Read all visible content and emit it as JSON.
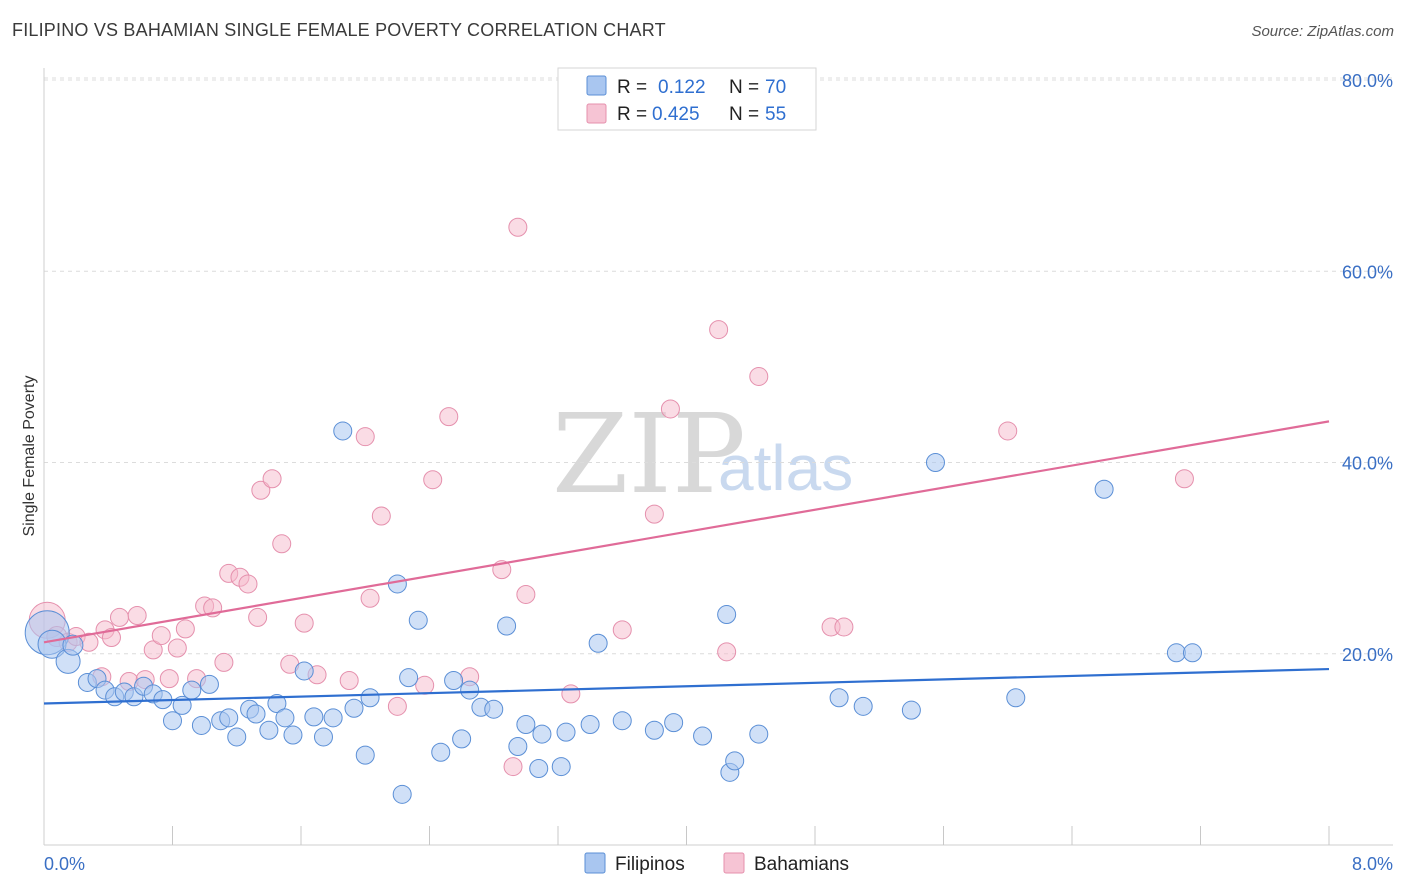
{
  "header": {
    "title": "FILIPINO VS BAHAMIAN SINGLE FEMALE POVERTY CORRELATION CHART",
    "source": "Source: ZipAtlas.com"
  },
  "legend": {
    "rows": [
      {
        "r_label": "R =",
        "r_value": "0.122",
        "n_label": "N =",
        "n_value": "70"
      },
      {
        "r_label": "R =",
        "r_value": "0.425",
        "n_label": "N =",
        "n_value": "55"
      }
    ]
  },
  "bottom_legend": {
    "items": [
      "Filipinos",
      "Bahamians"
    ]
  },
  "watermark": {
    "zip": "ZIP",
    "atlas": "atlas"
  },
  "colors": {
    "blue_fill": "#a9c6f0",
    "blue_stroke": "#5b8fd6",
    "blue_line": "#2f6fd0",
    "pink_fill": "#f6b9cc",
    "pink_stroke": "#e590ad",
    "pink_line": "#e06b98",
    "tick_label": "#3a6fc4"
  },
  "chart_data": {
    "type": "scatter",
    "title": "FILIPINO VS BAHAMIAN SINGLE FEMALE POVERTY CORRELATION CHART",
    "xlabel": "",
    "ylabel": "Single Female Poverty",
    "xlim": [
      0,
      8
    ],
    "ylim": [
      0,
      80
    ],
    "x_tick_labels": [
      "0.0%",
      "8.0%"
    ],
    "y_ticks": [
      20,
      40,
      60,
      80
    ],
    "y_tick_labels": [
      "20.0%",
      "40.0%",
      "60.0%",
      "80.0%"
    ],
    "grid": "horizontal dashed",
    "legend_position": "top-center",
    "series": [
      {
        "name": "Filipinos",
        "color": "#5b8fd6",
        "r": 0.122,
        "n": 70,
        "trend": {
          "x": [
            0,
            8
          ],
          "y": [
            14.8,
            18.4
          ]
        },
        "points": [
          [
            0.02,
            22.2,
            22
          ],
          [
            0.05,
            21.0,
            14
          ],
          [
            0.15,
            19.2,
            12
          ],
          [
            0.18,
            20.9,
            10
          ],
          [
            0.27,
            17.0,
            9
          ],
          [
            0.33,
            17.4,
            9
          ],
          [
            0.38,
            16.2,
            9
          ],
          [
            0.44,
            15.5,
            9
          ],
          [
            0.5,
            16.0,
            9
          ],
          [
            0.56,
            15.5,
            9
          ],
          [
            0.62,
            16.6,
            9
          ],
          [
            0.68,
            15.8,
            9
          ],
          [
            0.74,
            15.2,
            9
          ],
          [
            0.8,
            13.0,
            9
          ],
          [
            0.86,
            14.6,
            9
          ],
          [
            0.92,
            16.2,
            9
          ],
          [
            0.98,
            12.5,
            9
          ],
          [
            1.03,
            16.8,
            9
          ],
          [
            1.1,
            13.0,
            9
          ],
          [
            1.15,
            13.3,
            9
          ],
          [
            1.2,
            11.3,
            9
          ],
          [
            1.28,
            14.2,
            9
          ],
          [
            1.32,
            13.7,
            9
          ],
          [
            1.4,
            12.0,
            9
          ],
          [
            1.45,
            14.8,
            9
          ],
          [
            1.5,
            13.3,
            9
          ],
          [
            1.55,
            11.5,
            9
          ],
          [
            1.62,
            18.2,
            9
          ],
          [
            1.68,
            13.4,
            9
          ],
          [
            1.74,
            11.3,
            9
          ],
          [
            1.8,
            13.3,
            9
          ],
          [
            1.86,
            43.3,
            9
          ],
          [
            1.93,
            14.3,
            9
          ],
          [
            2.0,
            9.4,
            9
          ],
          [
            2.03,
            15.4,
            9
          ],
          [
            2.2,
            27.3,
            9
          ],
          [
            2.23,
            5.3,
            9
          ],
          [
            2.27,
            17.5,
            9
          ],
          [
            2.33,
            23.5,
            9
          ],
          [
            2.47,
            9.7,
            9
          ],
          [
            2.55,
            17.2,
            9
          ],
          [
            2.6,
            11.1,
            9
          ],
          [
            2.65,
            16.2,
            9
          ],
          [
            2.72,
            14.4,
            9
          ],
          [
            2.8,
            14.2,
            9
          ],
          [
            2.88,
            22.9,
            9
          ],
          [
            2.95,
            10.3,
            9
          ],
          [
            3.0,
            12.6,
            9
          ],
          [
            3.08,
            8.0,
            9
          ],
          [
            3.1,
            11.6,
            9
          ],
          [
            3.22,
            8.2,
            9
          ],
          [
            3.25,
            11.8,
            9
          ],
          [
            3.4,
            12.6,
            9
          ],
          [
            3.45,
            21.1,
            9
          ],
          [
            3.6,
            13.0,
            9
          ],
          [
            3.8,
            12.0,
            9
          ],
          [
            3.92,
            12.8,
            9
          ],
          [
            4.1,
            11.4,
            9
          ],
          [
            4.25,
            24.1,
            9
          ],
          [
            4.27,
            7.6,
            9
          ],
          [
            4.3,
            8.8,
            9
          ],
          [
            4.45,
            11.6,
            9
          ],
          [
            4.95,
            15.4,
            9
          ],
          [
            5.1,
            14.5,
            9
          ],
          [
            5.4,
            14.1,
            9
          ],
          [
            5.55,
            40.0,
            9
          ],
          [
            6.05,
            15.4,
            9
          ],
          [
            6.6,
            37.2,
            9
          ],
          [
            7.05,
            20.1,
            9
          ],
          [
            7.15,
            20.1,
            9
          ]
        ]
      },
      {
        "name": "Bahamians",
        "color": "#e590ad",
        "r": 0.425,
        "n": 55,
        "trend": {
          "x": [
            0,
            8
          ],
          "y": [
            21.2,
            44.3
          ]
        },
        "points": [
          [
            0.02,
            23.5,
            18
          ],
          [
            0.08,
            21.8,
            10
          ],
          [
            0.15,
            21.2,
            9
          ],
          [
            0.2,
            21.8,
            9
          ],
          [
            0.28,
            21.2,
            9
          ],
          [
            0.36,
            17.6,
            9
          ],
          [
            0.38,
            22.5,
            9
          ],
          [
            0.42,
            21.7,
            9
          ],
          [
            0.47,
            23.8,
            9
          ],
          [
            0.53,
            17.1,
            9
          ],
          [
            0.58,
            24.0,
            9
          ],
          [
            0.63,
            17.3,
            9
          ],
          [
            0.68,
            20.4,
            9
          ],
          [
            0.73,
            21.9,
            9
          ],
          [
            0.78,
            17.4,
            9
          ],
          [
            0.83,
            20.6,
            9
          ],
          [
            0.88,
            22.6,
            9
          ],
          [
            0.95,
            17.4,
            9
          ],
          [
            1.0,
            25.0,
            9
          ],
          [
            1.05,
            24.8,
            9
          ],
          [
            1.12,
            19.1,
            9
          ],
          [
            1.15,
            28.4,
            9
          ],
          [
            1.22,
            28.0,
            9
          ],
          [
            1.27,
            27.3,
            9
          ],
          [
            1.33,
            23.8,
            9
          ],
          [
            1.35,
            37.1,
            9
          ],
          [
            1.42,
            38.3,
            9
          ],
          [
            1.48,
            31.5,
            9
          ],
          [
            1.53,
            18.9,
            9
          ],
          [
            1.62,
            23.2,
            9
          ],
          [
            1.7,
            17.8,
            9
          ],
          [
            1.9,
            17.2,
            9
          ],
          [
            2.0,
            42.7,
            9
          ],
          [
            2.03,
            25.8,
            9
          ],
          [
            2.1,
            34.4,
            9
          ],
          [
            2.2,
            14.5,
            9
          ],
          [
            2.37,
            16.7,
            9
          ],
          [
            2.42,
            38.2,
            9
          ],
          [
            2.52,
            44.8,
            9
          ],
          [
            2.65,
            17.6,
            9
          ],
          [
            2.85,
            28.8,
            9
          ],
          [
            2.92,
            8.2,
            9
          ],
          [
            2.95,
            64.6,
            9
          ],
          [
            3.0,
            26.2,
            9
          ],
          [
            3.28,
            15.8,
            9
          ],
          [
            3.6,
            22.5,
            9
          ],
          [
            3.8,
            34.6,
            9
          ],
          [
            3.9,
            45.6,
            9
          ],
          [
            4.2,
            53.9,
            9
          ],
          [
            4.25,
            20.2,
            9
          ],
          [
            4.45,
            49.0,
            9
          ],
          [
            4.9,
            22.8,
            9
          ],
          [
            4.98,
            22.8,
            9
          ],
          [
            6.0,
            43.3,
            9
          ],
          [
            7.1,
            38.3,
            9
          ]
        ]
      }
    ]
  }
}
